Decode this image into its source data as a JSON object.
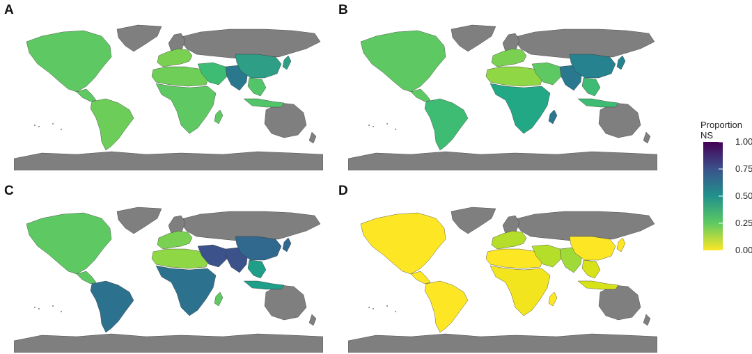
{
  "panels": [
    {
      "label": "A",
      "colors": {
        "namerica": "#5ec962",
        "samerica": "#6cce59",
        "europe": "#7ad151",
        "nafrica": "#6ece58",
        "africa": "#5ec962",
        "mideast": "#3fbc73",
        "southasia": "#2a788e",
        "eastasia": "#2e9f86",
        "seasia": "#52c569",
        "madagascar": "#5ec962"
      }
    },
    {
      "label": "B",
      "colors": {
        "namerica": "#5ec962",
        "samerica": "#3fbc73",
        "europe": "#7ad151",
        "nafrica": "#8fd744",
        "africa": "#22a884",
        "mideast": "#5ec962",
        "southasia": "#2a788e",
        "eastasia": "#26828e",
        "seasia": "#3fbc73",
        "madagascar": "#2a788e"
      }
    },
    {
      "label": "C",
      "colors": {
        "namerica": "#5ec962",
        "samerica": "#2c728e",
        "europe": "#7ad151",
        "nafrica": "#8fd744",
        "africa": "#2c728e",
        "mideast": "#3b528b",
        "southasia": "#3b528b",
        "eastasia": "#31688e",
        "seasia": "#1f9e89",
        "madagascar": "#5ec962"
      }
    },
    {
      "label": "D",
      "colors": {
        "namerica": "#fde725",
        "samerica": "#fde725",
        "europe": "#b5de2b",
        "nafrica": "#fde725",
        "africa": "#f2e51d",
        "mideast": "#b5de2b",
        "southasia": "#a0da39",
        "eastasia": "#fde725",
        "seasia": "#d8e219",
        "madagascar": "#fde725"
      }
    }
  ],
  "no_data_color": "#7f7f7f",
  "legend": {
    "title": "Proportion NS",
    "ticks": [
      {
        "label": "1.00",
        "value": 1.0
      },
      {
        "label": "0.75",
        "value": 0.75
      },
      {
        "label": "0.50",
        "value": 0.5
      },
      {
        "label": "0.25",
        "value": 0.25
      },
      {
        "label": "0.00",
        "value": 0.0
      }
    ],
    "gradient": [
      "#fde725",
      "#5ec962",
      "#21918c",
      "#3b528b",
      "#440154"
    ]
  }
}
